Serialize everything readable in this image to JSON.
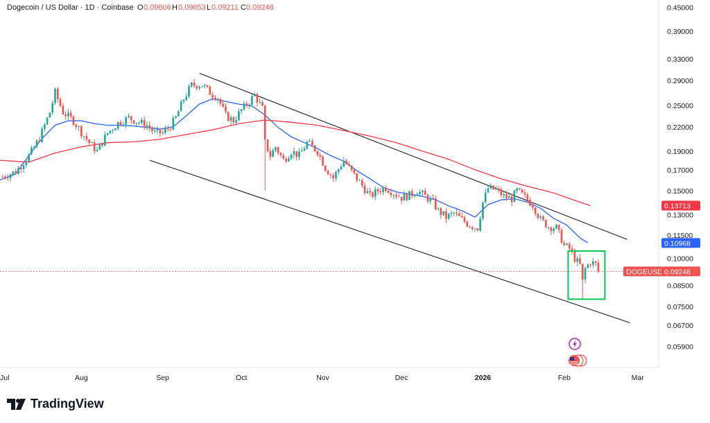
{
  "header": {
    "title": "Dogecoin / US Dollar · 1D · Coinbase",
    "o_label": "O",
    "o_value": "0.09606",
    "h_label": "H",
    "h_value": "0.09653",
    "l_label": "L",
    "l_value": "0.09211",
    "c_label": "C",
    "c_value": "0.09248"
  },
  "brand": {
    "name": "TradingView"
  },
  "colors": {
    "up": "#26a69a",
    "down": "#ef5350",
    "ma_fast": "#2962ff",
    "ma_slow": "#f23645",
    "channel": "#2a2e39",
    "highlight": "#00c853",
    "price_line": "#ef5350"
  },
  "chart_data": {
    "type": "candlestick",
    "title": "Dogecoin / US Dollar · 1D · Coinbase",
    "y_scale": "log",
    "ylim": [
      0.052,
      0.47
    ],
    "y_ticks": [
      "0.45000",
      "0.39000",
      "0.33000",
      "0.29000",
      "0.25000",
      "0.22000",
      "0.19000",
      "0.17000",
      "0.15000",
      "0.13000",
      "0.11500",
      "0.10000",
      "0.08500",
      "0.07500",
      "0.06700",
      "0.05900"
    ],
    "x_ticks": [
      {
        "label": "Jul",
        "day": -1,
        "bold": false
      },
      {
        "label": "Aug",
        "day": 30,
        "bold": false
      },
      {
        "label": "Sep",
        "day": 61,
        "bold": false
      },
      {
        "label": "Oct",
        "day": 91,
        "bold": false
      },
      {
        "label": "Nov",
        "day": 122,
        "bold": false
      },
      {
        "label": "Dec",
        "day": 152,
        "bold": false
      },
      {
        "label": "2026",
        "day": 183,
        "bold": true
      },
      {
        "label": "Feb",
        "day": 214,
        "bold": false
      },
      {
        "label": "Mar",
        "day": 242,
        "bold": false
      }
    ],
    "x_range_days": [
      -1,
      250
    ],
    "close_path": [
      [
        0,
        0.163
      ],
      [
        5,
        0.168
      ],
      [
        10,
        0.185
      ],
      [
        14,
        0.205
      ],
      [
        18,
        0.24
      ],
      [
        20,
        0.27
      ],
      [
        23,
        0.24
      ],
      [
        27,
        0.228
      ],
      [
        30,
        0.213
      ],
      [
        33,
        0.2
      ],
      [
        36,
        0.19
      ],
      [
        40,
        0.212
      ],
      [
        44,
        0.225
      ],
      [
        48,
        0.232
      ],
      [
        52,
        0.226
      ],
      [
        55,
        0.222
      ],
      [
        58,
        0.212
      ],
      [
        61,
        0.212
      ],
      [
        64,
        0.221
      ],
      [
        66,
        0.232
      ],
      [
        69,
        0.26
      ],
      [
        72,
        0.282
      ],
      [
        76,
        0.283
      ],
      [
        79,
        0.27
      ],
      [
        82,
        0.262
      ],
      [
        85,
        0.235
      ],
      [
        88,
        0.228
      ],
      [
        91,
        0.243
      ],
      [
        94,
        0.256
      ],
      [
        96,
        0.266
      ],
      [
        99,
        0.245
      ],
      [
        100,
        0.2
      ],
      [
        102,
        0.185
      ],
      [
        104,
        0.195
      ],
      [
        107,
        0.18
      ],
      [
        110,
        0.19
      ],
      [
        113,
        0.185
      ],
      [
        116,
        0.2
      ],
      [
        120,
        0.19
      ],
      [
        123,
        0.172
      ],
      [
        126,
        0.162
      ],
      [
        130,
        0.18
      ],
      [
        133,
        0.168
      ],
      [
        136,
        0.158
      ],
      [
        140,
        0.145
      ],
      [
        143,
        0.15
      ],
      [
        146,
        0.153
      ],
      [
        149,
        0.148
      ],
      [
        152,
        0.144
      ],
      [
        155,
        0.146
      ],
      [
        158,
        0.15
      ],
      [
        161,
        0.145
      ],
      [
        164,
        0.14
      ],
      [
        166,
        0.133
      ],
      [
        169,
        0.128
      ],
      [
        172,
        0.131
      ],
      [
        175,
        0.126
      ],
      [
        178,
        0.122
      ],
      [
        181,
        0.12
      ],
      [
        183,
        0.14
      ],
      [
        185,
        0.152
      ],
      [
        188,
        0.151
      ],
      [
        191,
        0.145
      ],
      [
        194,
        0.143
      ],
      [
        196,
        0.15
      ],
      [
        199,
        0.144
      ],
      [
        202,
        0.138
      ],
      [
        205,
        0.126
      ],
      [
        208,
        0.121
      ],
      [
        211,
        0.12
      ],
      [
        213,
        0.112
      ],
      [
        214,
        0.108
      ],
      [
        216,
        0.106
      ],
      [
        218,
        0.1
      ],
      [
        220,
        0.096
      ],
      [
        221,
        0.087
      ],
      [
        222,
        0.094
      ],
      [
        224,
        0.098
      ],
      [
        226,
        0.0965
      ],
      [
        227,
        0.0925
      ]
    ],
    "series": [
      {
        "name": "DOGEUSD",
        "last_value": "0.09248",
        "color": "#ef5350"
      },
      {
        "name": "MA fast",
        "last_value": "0.10968",
        "color": "#2962ff",
        "points": [
          [
            -1,
            0.16
          ],
          [
            5,
            0.166
          ],
          [
            10,
            0.185
          ],
          [
            15,
            0.205
          ],
          [
            20,
            0.222
          ],
          [
            25,
            0.228
          ],
          [
            30,
            0.228
          ],
          [
            35,
            0.224
          ],
          [
            40,
            0.222
          ],
          [
            45,
            0.222
          ],
          [
            50,
            0.221
          ],
          [
            55,
            0.219
          ],
          [
            60,
            0.217
          ],
          [
            65,
            0.22
          ],
          [
            70,
            0.235
          ],
          [
            75,
            0.252
          ],
          [
            80,
            0.26
          ],
          [
            85,
            0.256
          ],
          [
            90,
            0.252
          ],
          [
            95,
            0.249
          ],
          [
            100,
            0.236
          ],
          [
            105,
            0.219
          ],
          [
            110,
            0.207
          ],
          [
            115,
            0.2
          ],
          [
            120,
            0.193
          ],
          [
            125,
            0.185
          ],
          [
            130,
            0.179
          ],
          [
            135,
            0.169
          ],
          [
            140,
            0.161
          ],
          [
            145,
            0.153
          ],
          [
            150,
            0.149
          ],
          [
            155,
            0.147
          ],
          [
            160,
            0.145
          ],
          [
            165,
            0.142
          ],
          [
            170,
            0.137
          ],
          [
            175,
            0.133
          ],
          [
            180,
            0.128
          ],
          [
            185,
            0.138
          ],
          [
            190,
            0.142
          ],
          [
            195,
            0.143
          ],
          [
            200,
            0.14
          ],
          [
            205,
            0.135
          ],
          [
            210,
            0.127
          ],
          [
            215,
            0.122
          ],
          [
            220,
            0.113
          ],
          [
            223,
            0.1097
          ]
        ]
      },
      {
        "name": "MA slow",
        "last_value": "0.13713",
        "color": "#f23645",
        "points": [
          [
            -1,
            0.18
          ],
          [
            10,
            0.178
          ],
          [
            20,
            0.188
          ],
          [
            30,
            0.195
          ],
          [
            40,
            0.2
          ],
          [
            50,
            0.201
          ],
          [
            60,
            0.204
          ],
          [
            70,
            0.21
          ],
          [
            80,
            0.216
          ],
          [
            90,
            0.224
          ],
          [
            100,
            0.229
          ],
          [
            110,
            0.226
          ],
          [
            120,
            0.222
          ],
          [
            130,
            0.215
          ],
          [
            140,
            0.208
          ],
          [
            150,
            0.2
          ],
          [
            160,
            0.19
          ],
          [
            170,
            0.181
          ],
          [
            180,
            0.17
          ],
          [
            190,
            0.161
          ],
          [
            200,
            0.154
          ],
          [
            210,
            0.148
          ],
          [
            218,
            0.1415
          ],
          [
            224,
            0.1371
          ]
        ]
      }
    ],
    "channel_lines": [
      {
        "name": "upper",
        "from": [
          75,
          0.303
        ],
        "to": [
          238,
          0.112
        ]
      },
      {
        "name": "lower",
        "from": [
          56,
          0.18
        ],
        "to": [
          239,
          0.068
        ]
      }
    ],
    "highlight_box": {
      "from_day": 215.5,
      "to_day": 229.5,
      "top": 0.1045,
      "bottom": 0.0783
    },
    "wick_spike": {
      "day": 100,
      "low": 0.15
    },
    "wick_spike_2": {
      "day": 221,
      "low": 0.0785
    },
    "labels": {
      "symbol": "DOGEUSD",
      "price": "0.09248",
      "ma_slow": "0.13713",
      "ma_fast": "0.10968"
    }
  }
}
